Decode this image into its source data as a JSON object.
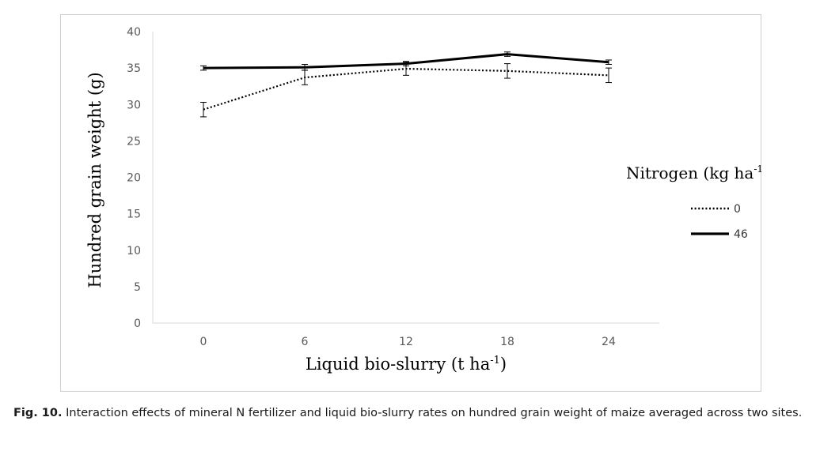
{
  "chart_data": {
    "type": "line",
    "title": "",
    "xlabel": "Liquid bio-slurry (t ha",
    "xlabel_sup": "-1",
    "xlabel_end": ")",
    "ylabel": "Hundred grain weight (g)",
    "x": [
      0,
      6,
      12,
      18,
      24
    ],
    "ylim": [
      0,
      40
    ],
    "yticks": [
      0,
      5,
      10,
      15,
      20,
      25,
      30,
      35,
      40
    ],
    "grid": false,
    "legend_position": "right",
    "legend_title": "Nitrogen (kg ha",
    "legend_title_sup": "-1",
    "legend_title_end": ")",
    "series": [
      {
        "name": "0",
        "style": "dotted",
        "color": "#000000",
        "values": [
          29.3,
          33.7,
          34.9,
          34.6,
          34.0
        ],
        "errors": [
          1.0,
          1.0,
          0.9,
          1.0,
          1.0
        ]
      },
      {
        "name": "46",
        "style": "solid",
        "color": "#000000",
        "values": [
          35.0,
          35.1,
          35.6,
          36.9,
          35.8
        ],
        "errors": [
          0.3,
          0.4,
          0.3,
          0.3,
          0.3
        ]
      }
    ]
  },
  "caption": {
    "label": "Fig. 10.",
    "text": " Interaction effects of mineral N fertilizer and liquid bio-slurry rates on hundred grain weight of maize averaged across two sites."
  }
}
